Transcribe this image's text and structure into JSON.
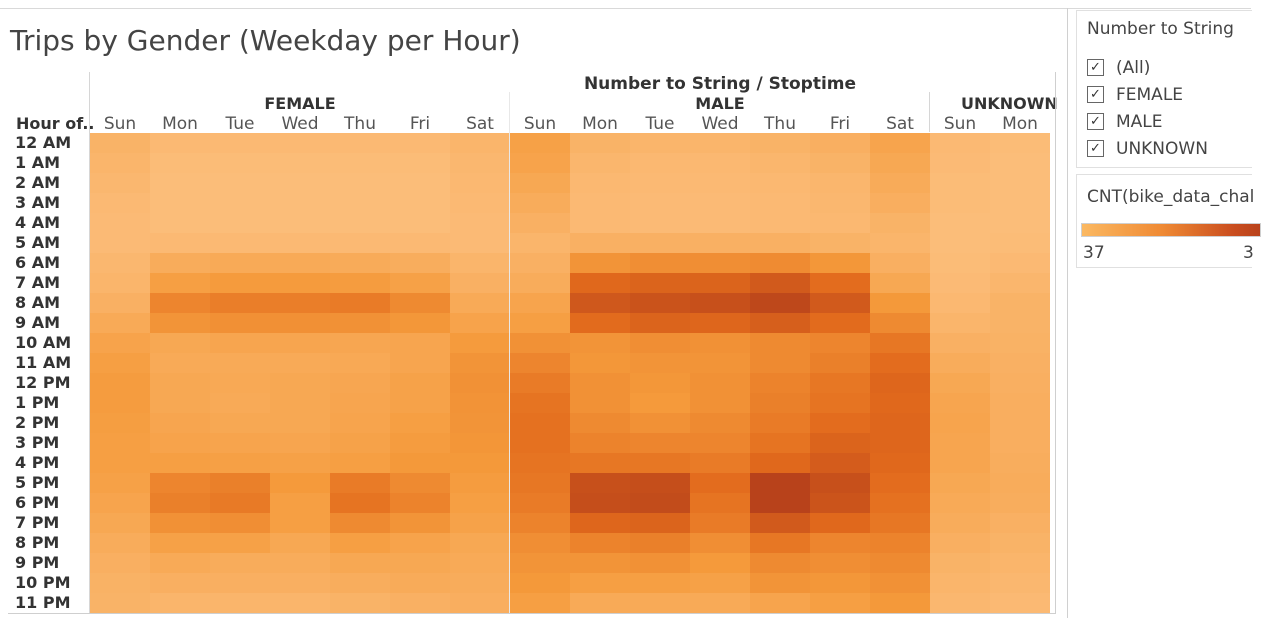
{
  "title": "Trips by Gender (Weekday per Hour)",
  "chart_data": {
    "type": "heatmap",
    "title": "Trips by Gender (Weekday per Hour)",
    "column_super_header": "Number to String / Stoptime",
    "row_header": "Hour of..",
    "groups": [
      "FEMALE",
      "MALE",
      "UNKNOWN"
    ],
    "days": [
      "Sun",
      "Mon",
      "Tue",
      "Wed",
      "Thu",
      "Fri",
      "Sat"
    ],
    "hours": [
      "12 AM",
      "1 AM",
      "2 AM",
      "3 AM",
      "4 AM",
      "5 AM",
      "6 AM",
      "7 AM",
      "8 AM",
      "9 AM",
      "10 AM",
      "11 AM",
      "12 PM",
      "1 PM",
      "2 PM",
      "3 PM",
      "4 PM",
      "5 PM",
      "6 PM",
      "7 PM",
      "8 PM",
      "9 PM",
      "10 PM",
      "11 PM"
    ],
    "value_scale": "relative intensity 0-100 estimated from cell color",
    "values": {
      "FEMALE": [
        [
          12,
          6,
          6,
          6,
          6,
          6,
          10
        ],
        [
          10,
          4,
          4,
          4,
          4,
          4,
          8
        ],
        [
          8,
          3,
          3,
          3,
          3,
          3,
          7
        ],
        [
          6,
          3,
          3,
          3,
          3,
          3,
          6
        ],
        [
          5,
          3,
          3,
          3,
          3,
          3,
          5
        ],
        [
          5,
          6,
          6,
          6,
          6,
          6,
          5
        ],
        [
          8,
          18,
          20,
          20,
          19,
          17,
          10
        ],
        [
          10,
          30,
          33,
          33,
          32,
          28,
          14
        ],
        [
          14,
          48,
          53,
          53,
          55,
          45,
          20
        ],
        [
          20,
          38,
          41,
          41,
          40,
          36,
          26
        ],
        [
          26,
          22,
          24,
          24,
          23,
          24,
          33
        ],
        [
          30,
          20,
          20,
          20,
          21,
          24,
          38
        ],
        [
          32,
          22,
          21,
          22,
          23,
          27,
          40
        ],
        [
          32,
          22,
          20,
          22,
          24,
          27,
          39
        ],
        [
          31,
          24,
          22,
          22,
          25,
          30,
          38
        ],
        [
          30,
          26,
          25,
          24,
          27,
          32,
          37
        ],
        [
          30,
          30,
          29,
          28,
          30,
          35,
          35
        ],
        [
          28,
          48,
          52,
          34,
          55,
          45,
          32
        ],
        [
          25,
          52,
          56,
          30,
          60,
          50,
          30
        ],
        [
          22,
          40,
          42,
          30,
          45,
          38,
          27
        ],
        [
          18,
          28,
          28,
          22,
          30,
          26,
          22
        ],
        [
          15,
          20,
          18,
          18,
          22,
          22,
          20
        ],
        [
          13,
          15,
          15,
          15,
          17,
          19,
          18
        ],
        [
          12,
          10,
          10,
          10,
          12,
          14,
          16
        ]
      ],
      "MALE": [
        [
          28,
          12,
          10,
          10,
          12,
          15,
          25
        ],
        [
          26,
          9,
          7,
          7,
          9,
          12,
          22
        ],
        [
          22,
          7,
          6,
          6,
          7,
          9,
          19
        ],
        [
          18,
          6,
          5,
          5,
          6,
          8,
          16
        ],
        [
          14,
          6,
          5,
          5,
          6,
          7,
          12
        ],
        [
          10,
          14,
          14,
          14,
          14,
          12,
          10
        ],
        [
          14,
          38,
          42,
          42,
          44,
          36,
          15
        ],
        [
          18,
          68,
          72,
          72,
          80,
          65,
          22
        ],
        [
          25,
          82,
          86,
          88,
          95,
          80,
          35
        ],
        [
          30,
          66,
          72,
          70,
          76,
          66,
          45
        ],
        [
          40,
          38,
          42,
          40,
          45,
          48,
          58
        ],
        [
          48,
          36,
          38,
          38,
          45,
          52,
          65
        ],
        [
          55,
          40,
          36,
          40,
          50,
          58,
          70
        ],
        [
          60,
          40,
          34,
          40,
          52,
          60,
          68
        ],
        [
          62,
          45,
          40,
          45,
          55,
          65,
          70
        ],
        [
          62,
          50,
          48,
          48,
          60,
          72,
          70
        ],
        [
          60,
          58,
          58,
          55,
          68,
          78,
          68
        ],
        [
          58,
          88,
          90,
          65,
          100,
          88,
          65
        ],
        [
          55,
          90,
          92,
          60,
          100,
          85,
          62
        ],
        [
          50,
          70,
          72,
          55,
          80,
          68,
          58
        ],
        [
          42,
          50,
          52,
          42,
          58,
          48,
          50
        ],
        [
          38,
          38,
          40,
          34,
          45,
          42,
          45
        ],
        [
          35,
          30,
          30,
          28,
          38,
          36,
          40
        ],
        [
          30,
          20,
          20,
          20,
          25,
          30,
          35
        ]
      ],
      "UNKNOWN": [
        [
          6,
          4
        ],
        [
          5,
          3
        ],
        [
          4,
          3
        ],
        [
          4,
          3
        ],
        [
          3,
          3
        ],
        [
          3,
          4
        ],
        [
          4,
          6
        ],
        [
          5,
          9
        ],
        [
          7,
          12
        ],
        [
          10,
          12
        ],
        [
          14,
          13
        ],
        [
          18,
          14
        ],
        [
          22,
          15
        ],
        [
          24,
          16
        ],
        [
          25,
          16
        ],
        [
          24,
          16
        ],
        [
          24,
          17
        ],
        [
          22,
          18
        ],
        [
          20,
          17
        ],
        [
          18,
          14
        ],
        [
          15,
          12
        ],
        [
          12,
          10
        ],
        [
          10,
          8
        ],
        [
          8,
          6
        ]
      ]
    },
    "color_scale": [
      "#fcc07f",
      "#f59b3c",
      "#e26a1c",
      "#b8421b"
    ]
  },
  "filter": {
    "title": "Number to String",
    "items": [
      {
        "label": "(All)",
        "checked": true
      },
      {
        "label": "FEMALE",
        "checked": true
      },
      {
        "label": "MALE",
        "checked": true
      },
      {
        "label": "UNKNOWN",
        "checked": true
      }
    ],
    "check_glyph": "✓"
  },
  "legend": {
    "title": "CNT(bike_data_chal",
    "min_label": "37",
    "max_label": "3"
  }
}
